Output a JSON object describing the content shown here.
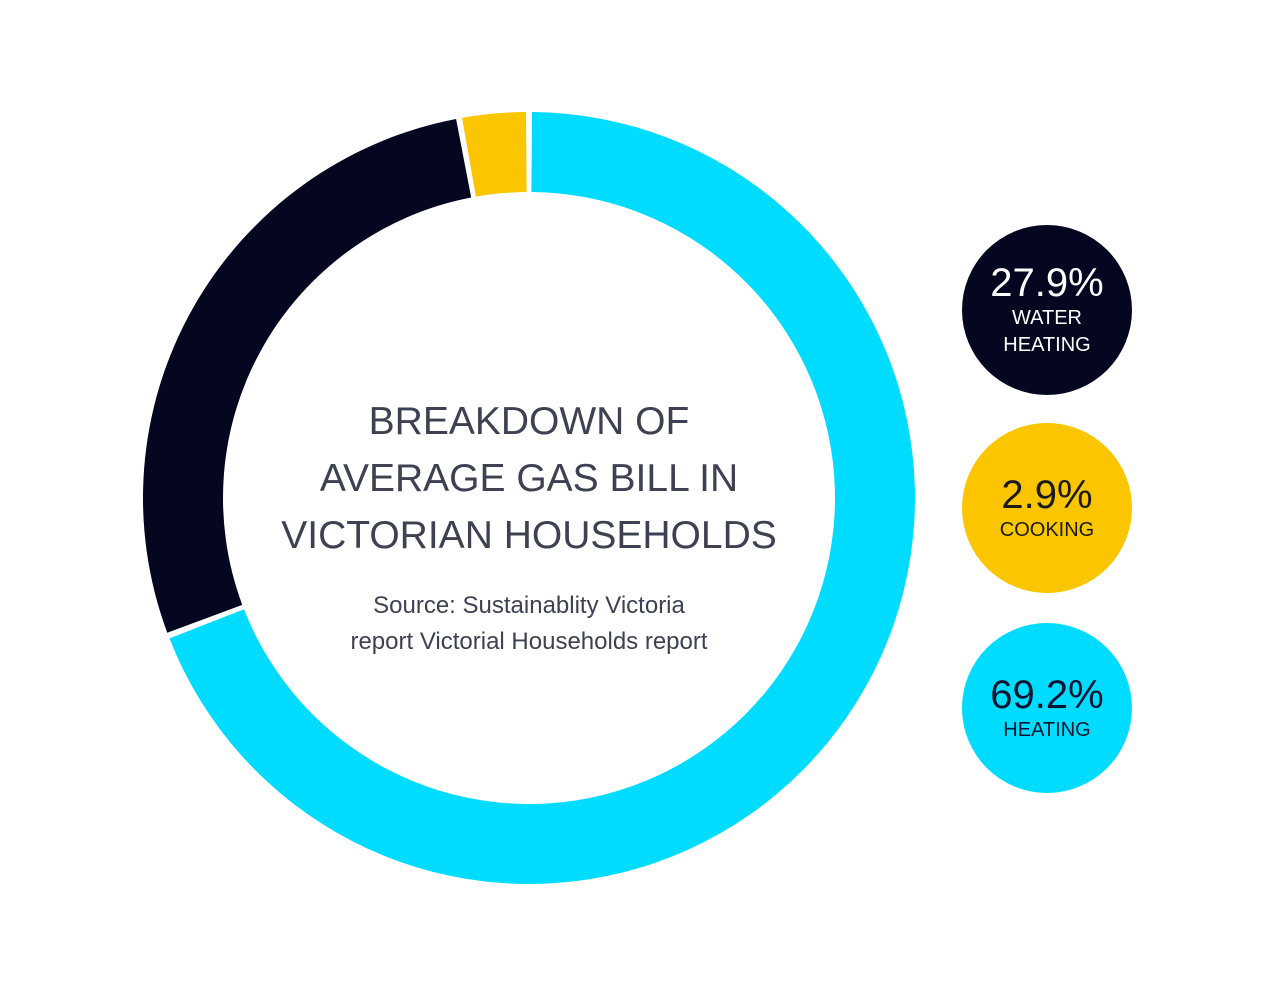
{
  "chart_data": {
    "type": "pie",
    "variant": "donut",
    "title": "BREAKDOWN OF AVERAGE GAS BILL IN VICTORIAN HOUSEHOLDS",
    "subtitle": "Source: Sustainablity Victoria report Victorial Households report",
    "categories": [
      "Heating",
      "Water Heating",
      "Cooking"
    ],
    "values": [
      69.2,
      27.9,
      2.9
    ],
    "unit": "%",
    "colors": [
      "#00dcff",
      "#05061f",
      "#fbc600"
    ],
    "legend_position": "right"
  },
  "title_lines": [
    "BREAKDOWN OF",
    "AVERAGE GAS BILL IN",
    "VICTORIAN HOUSEHOLDS"
  ],
  "source_lines": [
    "Source: Sustainablity Victoria",
    "report Victorial Households report"
  ],
  "legend": [
    {
      "value": "27.9%",
      "label_lines": [
        "WATER",
        "HEATING"
      ],
      "bg": "#05061f",
      "fg": "#ffffff"
    },
    {
      "value": "2.9%",
      "label_lines": [
        "COOKING"
      ],
      "bg": "#fbc600",
      "fg": "#1b1b1b"
    },
    {
      "value": "69.2%",
      "label_lines": [
        "HEATING"
      ],
      "bg": "#00dcff",
      "fg": "#0c1430"
    }
  ]
}
